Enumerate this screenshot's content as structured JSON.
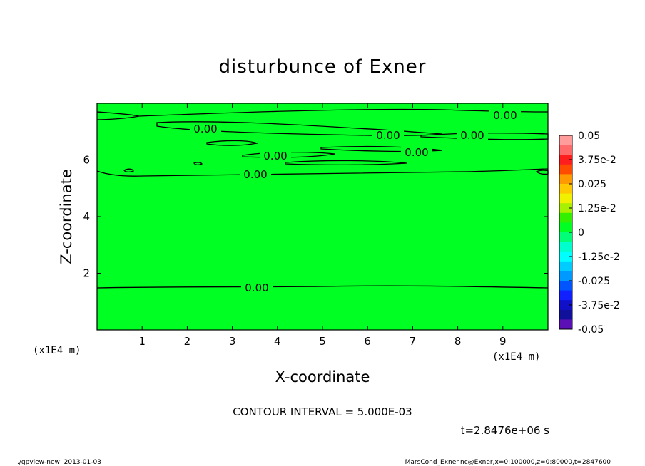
{
  "chart_data": {
    "type": "heatmap",
    "title": "disturbunce of Exner",
    "xlabel": "X-coordinate",
    "ylabel": "Z-coordinate",
    "x_unit": "(x1E4 m)",
    "y_unit": "(x1E4 m)",
    "xlim": [
      0,
      10
    ],
    "ylim": [
      0,
      8
    ],
    "x_ticks": [
      "1",
      "2",
      "3",
      "4",
      "5",
      "6",
      "7",
      "8",
      "9"
    ],
    "y_ticks": [
      "2",
      "4",
      "6"
    ],
    "field_value": 0,
    "field_color": "#00ff22",
    "contour_labels": [
      "0.00",
      "0.00",
      "0.00",
      "0.00",
      "0.00",
      "0.00",
      "0.00",
      "0.00"
    ],
    "colorbar": {
      "labels": [
        "0.05",
        "3.75e-2",
        "0.025",
        "1.25e-2",
        "0",
        "-1.25e-2",
        "-0.025",
        "-3.75e-2",
        "-0.05"
      ],
      "colors": [
        "#ff9c9c",
        "#ff6a6a",
        "#ff1e1e",
        "#ff4c00",
        "#ff9900",
        "#ffc800",
        "#f0f000",
        "#a8f000",
        "#33f000",
        "#00ff22",
        "#00ff77",
        "#00ffcc",
        "#00ffff",
        "#00ccff",
        "#0099ff",
        "#0055ff",
        "#1020ff",
        "#1010c8",
        "#10109a",
        "#5a10b4"
      ]
    },
    "contour_interval": "CONTOUR INTERVAL = 5.000E-03",
    "time_label": "t=2.8476e+06 s"
  },
  "footer": {
    "left": "./gpview-new  2013-01-03",
    "right": "MarsCond_Exner.nc@Exner,x=0:100000,z=0:80000,t=2847600"
  }
}
